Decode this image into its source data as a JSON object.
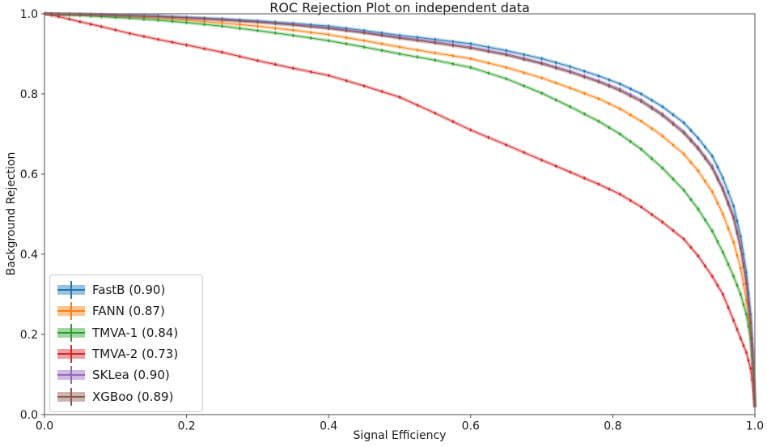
{
  "chart_data": {
    "type": "line",
    "title": "ROC Rejection Plot on independent data",
    "xlabel": "Signal Efficiency",
    "ylabel": "Background Rejection",
    "xlim": [
      0.0,
      1.0
    ],
    "ylim": [
      0.0,
      1.0
    ],
    "xticks": [
      0.0,
      0.2,
      0.4,
      0.6,
      0.8,
      1.0
    ],
    "yticks": [
      0.0,
      0.2,
      0.4,
      0.6,
      0.8,
      1.0
    ],
    "grid": false,
    "legend_position": "lower left",
    "marker_style": "point markers with error bars and shaded band",
    "x": [
      0.0,
      0.02,
      0.05,
      0.08,
      0.12,
      0.16,
      0.2,
      0.25,
      0.3,
      0.35,
      0.4,
      0.45,
      0.5,
      0.55,
      0.6,
      0.65,
      0.7,
      0.74,
      0.78,
      0.81,
      0.84,
      0.87,
      0.9,
      0.92,
      0.94,
      0.955,
      0.97,
      0.98,
      0.988,
      0.994,
      0.998,
      1.0
    ],
    "series": [
      {
        "name": "FastB",
        "auc": 0.9,
        "legend_label": "FastB (0.90)",
        "color": "#1f77b4",
        "values": [
          1.0,
          0.9995,
          0.999,
          0.998,
          0.996,
          0.994,
          0.991,
          0.987,
          0.982,
          0.976,
          0.969,
          0.958,
          0.946,
          0.936,
          0.925,
          0.908,
          0.888,
          0.868,
          0.845,
          0.825,
          0.8,
          0.768,
          0.728,
          0.69,
          0.645,
          0.59,
          0.52,
          0.445,
          0.355,
          0.25,
          0.13,
          0.02
        ]
      },
      {
        "name": "FANN",
        "auc": 0.87,
        "legend_label": "FANN (0.87)",
        "color": "#ff7f0e",
        "values": [
          1.0,
          0.999,
          0.998,
          0.996,
          0.993,
          0.989,
          0.984,
          0.977,
          0.969,
          0.959,
          0.948,
          0.933,
          0.917,
          0.902,
          0.888,
          0.866,
          0.84,
          0.815,
          0.788,
          0.763,
          0.732,
          0.695,
          0.65,
          0.608,
          0.556,
          0.5,
          0.43,
          0.365,
          0.285,
          0.2,
          0.1,
          0.02
        ]
      },
      {
        "name": "TMVA-1",
        "auc": 0.84,
        "legend_label": "TMVA-1 (0.84)",
        "color": "#2ca02c",
        "values": [
          1.0,
          0.998,
          0.996,
          0.993,
          0.989,
          0.984,
          0.978,
          0.969,
          0.958,
          0.946,
          0.933,
          0.917,
          0.9,
          0.884,
          0.866,
          0.838,
          0.802,
          0.768,
          0.732,
          0.7,
          0.662,
          0.615,
          0.56,
          0.513,
          0.458,
          0.405,
          0.345,
          0.3,
          0.25,
          0.19,
          0.1,
          0.02
        ]
      },
      {
        "name": "TMVA-2",
        "auc": 0.73,
        "legend_label": "TMVA-2 (0.73)",
        "color": "#d62728",
        "values": [
          1.0,
          0.993,
          0.98,
          0.968,
          0.951,
          0.936,
          0.922,
          0.904,
          0.883,
          0.864,
          0.846,
          0.82,
          0.792,
          0.752,
          0.71,
          0.673,
          0.635,
          0.605,
          0.575,
          0.55,
          0.518,
          0.48,
          0.438,
          0.396,
          0.345,
          0.3,
          0.235,
          0.19,
          0.155,
          0.115,
          0.06,
          0.02
        ]
      },
      {
        "name": "SKLea",
        "auc": 0.9,
        "legend_label": "SKLea (0.90)",
        "color": "#9467bd",
        "values": [
          1.0,
          0.9995,
          0.9988,
          0.9975,
          0.9955,
          0.9935,
          0.99,
          0.985,
          0.98,
          0.973,
          0.965,
          0.954,
          0.941,
          0.93,
          0.917,
          0.9,
          0.878,
          0.857,
          0.833,
          0.812,
          0.785,
          0.75,
          0.706,
          0.667,
          0.62,
          0.565,
          0.495,
          0.42,
          0.335,
          0.235,
          0.12,
          0.02
        ]
      },
      {
        "name": "XGBoo",
        "auc": 0.89,
        "legend_label": "XGBoo (0.89)",
        "color": "#8c564b",
        "values": [
          1.0,
          0.999,
          0.9985,
          0.997,
          0.995,
          0.993,
          0.9895,
          0.9845,
          0.979,
          0.972,
          0.963,
          0.952,
          0.939,
          0.927,
          0.914,
          0.897,
          0.875,
          0.854,
          0.83,
          0.808,
          0.781,
          0.746,
          0.702,
          0.663,
          0.615,
          0.56,
          0.49,
          0.415,
          0.327,
          0.228,
          0.115,
          0.02
        ]
      }
    ]
  }
}
